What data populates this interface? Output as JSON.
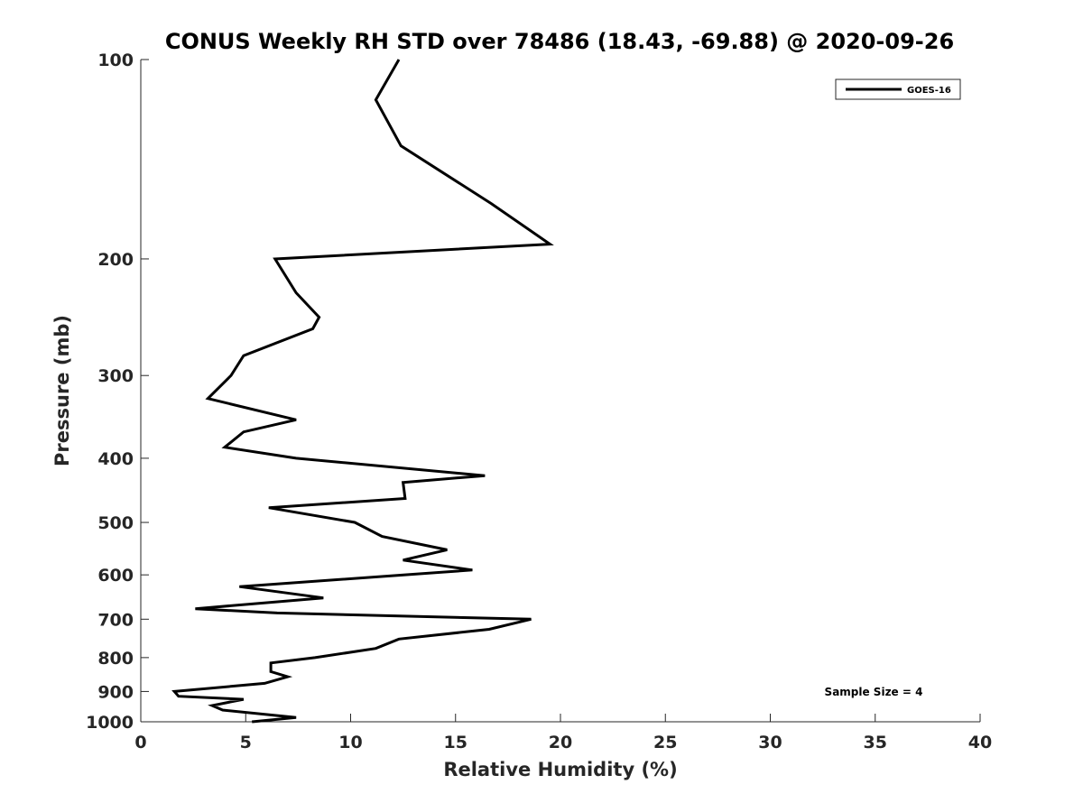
{
  "chart_data": {
    "type": "line",
    "title": "CONUS Weekly RH STD over 78486 (18.43, -69.88) @ 2020-09-26",
    "xlabel": "Relative Humidity (%)",
    "ylabel": "Pressure (mb)",
    "xlim": [
      0,
      40
    ],
    "ylim": [
      100,
      1000
    ],
    "y_scale": "log",
    "y_reversed": true,
    "grid": false,
    "legend_position": "top-right",
    "x_ticks": [
      "0",
      "5",
      "10",
      "15",
      "20",
      "25",
      "30",
      "35",
      "40"
    ],
    "y_ticks": [
      "100",
      "200",
      "300",
      "400",
      "500",
      "600",
      "700",
      "800",
      "900",
      "1000"
    ],
    "series": [
      {
        "name": "GOES-16",
        "color": "#000000",
        "x": [
          12.3,
          11.2,
          12.4,
          16.7,
          19.5,
          6.4,
          7.4,
          8.5,
          8.2,
          4.9,
          4.3,
          3.2,
          7.4,
          4.9,
          4.0,
          7.4,
          16.4,
          12.5,
          12.6,
          6.1,
          10.2,
          11.5,
          14.6,
          12.5,
          15.8,
          4.7,
          8.7,
          2.6,
          6.5,
          18.6,
          16.6,
          12.3,
          11.2,
          8.3,
          6.2,
          6.2,
          7.0,
          5.9,
          1.6,
          1.8,
          4.9,
          3.4,
          3.9,
          7.4,
          5.3
        ],
        "y": [
          100,
          115,
          135,
          165,
          190,
          200,
          225,
          245,
          255,
          280,
          300,
          325,
          350,
          365,
          385,
          400,
          425,
          435,
          460,
          475,
          500,
          525,
          550,
          570,
          590,
          625,
          650,
          675,
          685,
          700,
          725,
          750,
          775,
          800,
          815,
          840,
          855,
          875,
          900,
          915,
          925,
          945,
          960,
          985,
          1000
        ]
      }
    ],
    "annotations": [
      "Sample Size = 4"
    ]
  }
}
